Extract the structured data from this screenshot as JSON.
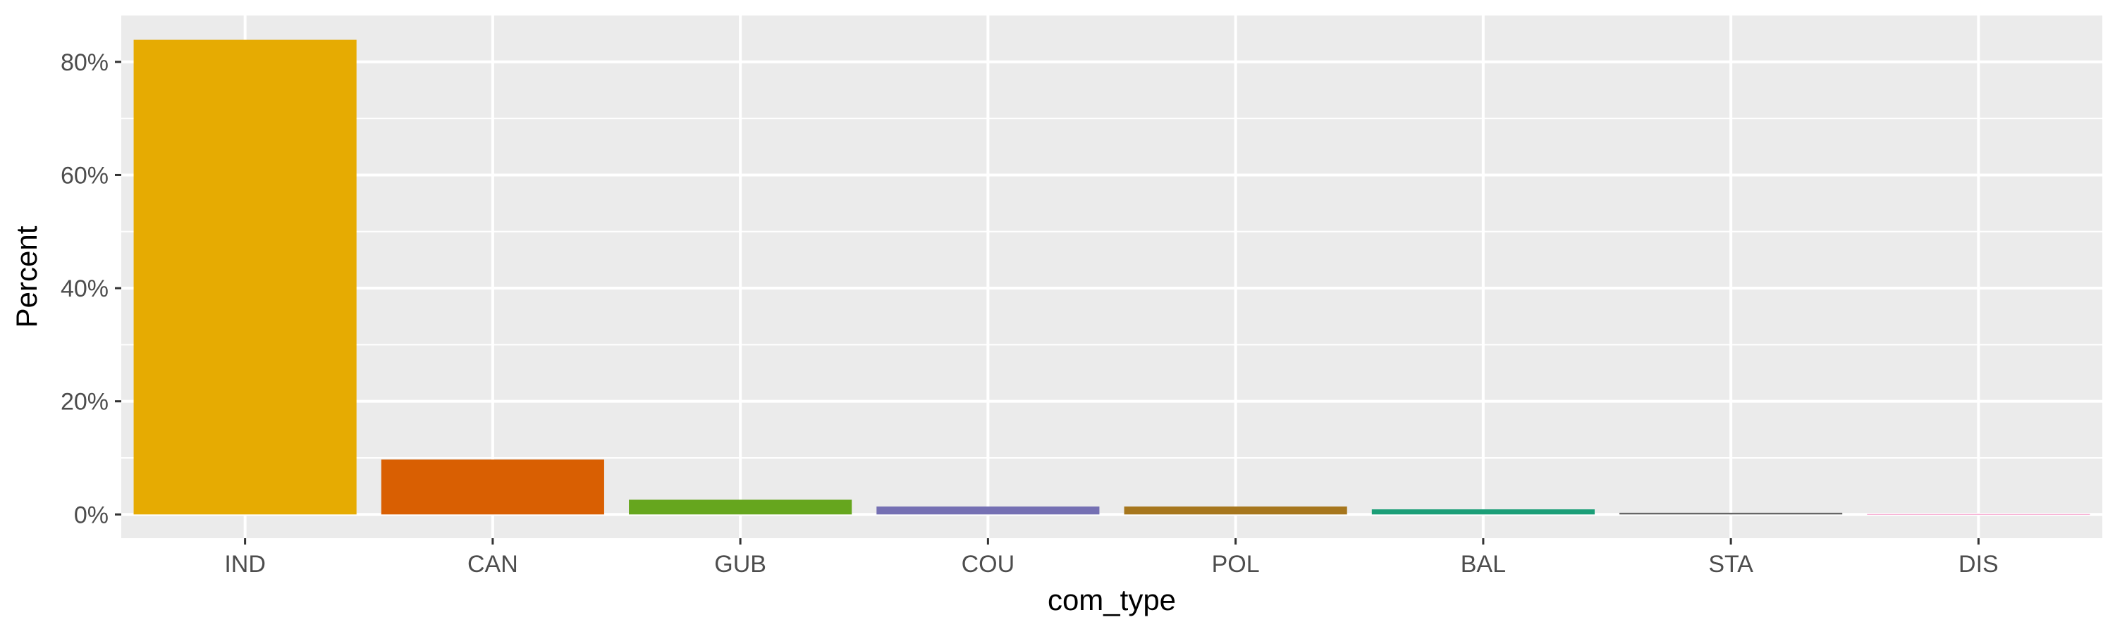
{
  "chart_data": {
    "type": "bar",
    "categories": [
      "IND",
      "CAN",
      "GUB",
      "COU",
      "POL",
      "BAL",
      "STA",
      "DIS"
    ],
    "values": [
      83.9,
      9.7,
      2.6,
      1.4,
      1.4,
      0.9,
      0.3,
      0.05
    ],
    "colors": [
      "#E6AB02",
      "#D95F02",
      "#66A61E",
      "#7570B3",
      "#A6761D",
      "#1B9E77",
      "#666666",
      "#E7298A"
    ],
    "xlabel": "com_type",
    "ylabel": "Percent",
    "ylim": [
      -4.2,
      88.2
    ],
    "yticks": [
      0,
      20,
      40,
      60,
      80
    ],
    "ytick_labels": [
      "0%",
      "20%",
      "40%",
      "60%",
      "80%"
    ],
    "grid": true,
    "panel_background": "#EBEBEB",
    "grid_color": "#FFFFFF"
  }
}
